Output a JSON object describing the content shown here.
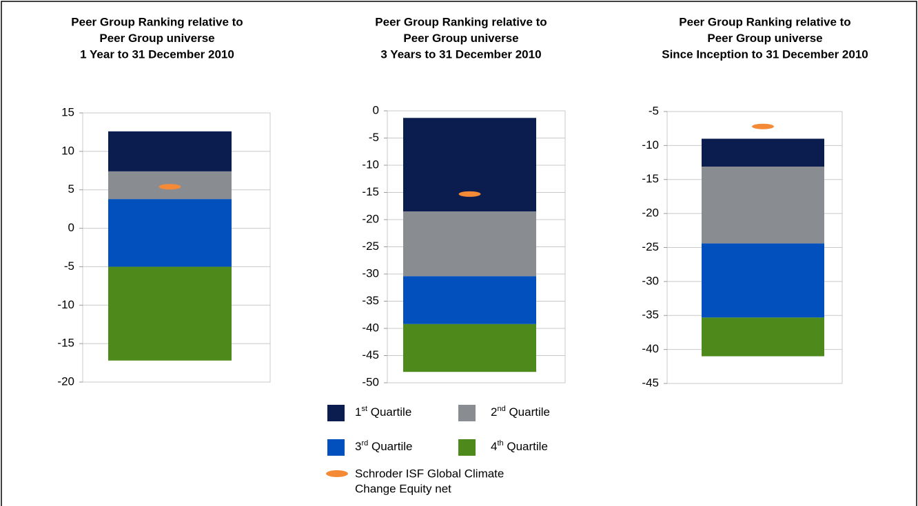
{
  "legend": {
    "quartiles": [
      {
        "name": "1st Quartile",
        "color": "#0b1d4f"
      },
      {
        "name": "2nd Quartile",
        "color": "#898d91"
      },
      {
        "name": "3rd Quartile",
        "color": "#0150bd"
      },
      {
        "name": "4th Quartile",
        "color": "#4d8a1b"
      }
    ],
    "fund": {
      "name": [
        "Schroder ISF Global Climate",
        "Change Equity net"
      ],
      "color": "#f58a36"
    }
  },
  "chart_data": [
    {
      "type": "bar",
      "title": [
        "Peer Group Ranking relative to",
        "Peer Group universe",
        "1 Year to 31 December 2010"
      ],
      "ylim": [
        -20,
        15
      ],
      "yticks": [
        -20,
        -15,
        -10,
        -5,
        0,
        5,
        10,
        15
      ],
      "grid": true,
      "base": -17.2,
      "segments": [
        5.2,
        3.6,
        8.8,
        12.2
      ],
      "fund": 5.4
    },
    {
      "type": "bar",
      "title": [
        "Peer Group Ranking relative to",
        "Peer Group universe",
        "3 Years to 31 December 2010"
      ],
      "ylim": [
        -50,
        0
      ],
      "yticks": [
        -50,
        -45,
        -40,
        -35,
        -30,
        -25,
        -20,
        -15,
        -10,
        -5,
        0
      ],
      "grid": true,
      "base": -48.0,
      "segments": [
        17.2,
        11.9,
        8.8,
        8.8
      ],
      "fund": -15.3
    },
    {
      "type": "bar",
      "title": [
        "Peer Group Ranking relative to",
        "Peer Group universe",
        "Since Inception to 31 December 2010"
      ],
      "ylim": [
        -45,
        -5
      ],
      "yticks": [
        -45,
        -40,
        -35,
        -30,
        -25,
        -20,
        -15,
        -10,
        -5
      ],
      "grid": true,
      "base": -41,
      "segments": [
        4.1,
        11.3,
        10.9,
        5.7
      ],
      "fund": -7.2
    }
  ]
}
